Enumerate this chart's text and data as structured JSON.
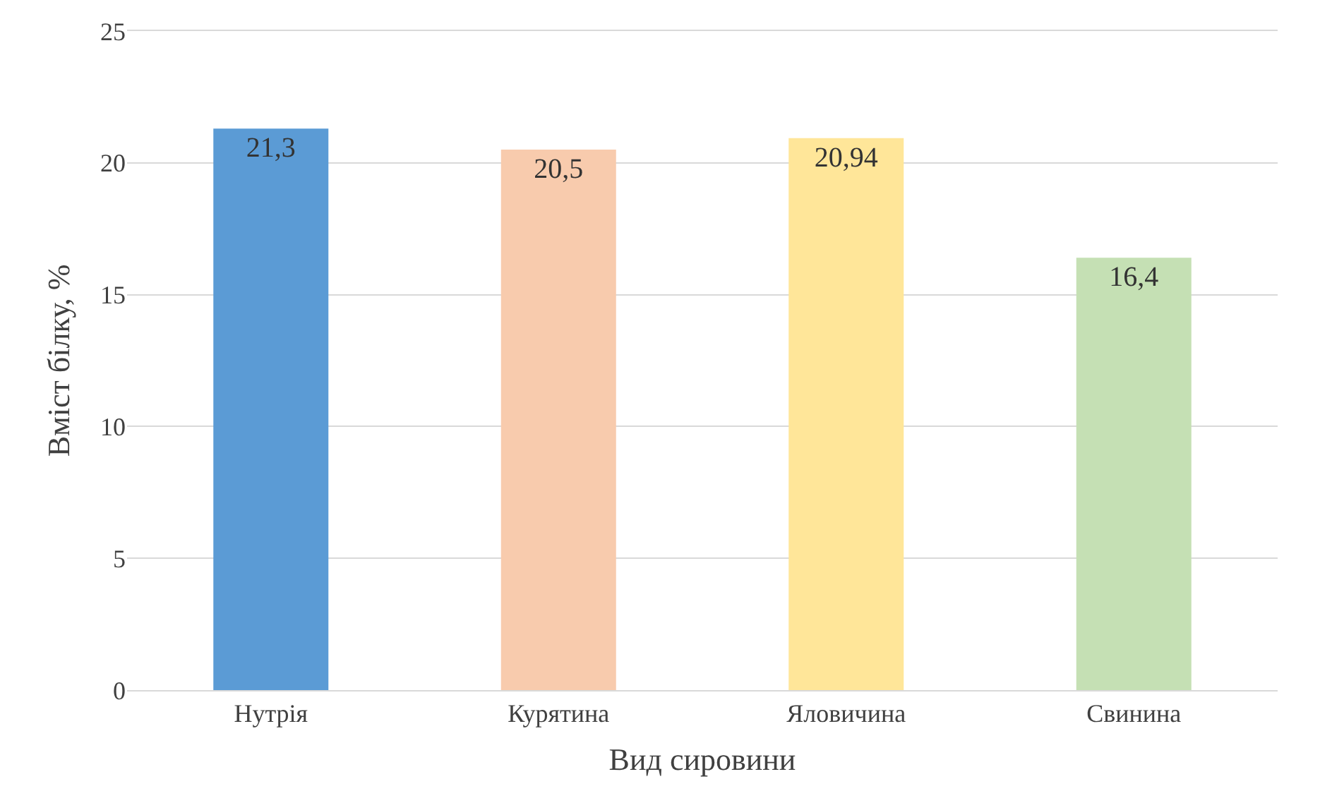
{
  "chart_data": {
    "type": "bar",
    "xlabel": "Вид сировини",
    "ylabel": "Вміст білку, %",
    "categories": [
      "Нутрія",
      "Курятина",
      "Яловичина",
      "Свинина"
    ],
    "values": [
      21.3,
      20.5,
      20.94,
      16.4
    ],
    "value_labels": [
      "21,3",
      "20,5",
      "20,94",
      "16,4"
    ],
    "colors": [
      "#5b9bd5",
      "#f8cbad",
      "#ffe699",
      "#c5e0b4"
    ],
    "ylim": [
      0,
      25
    ],
    "yticks": [
      0,
      5,
      10,
      15,
      20,
      25
    ],
    "grid": "y"
  }
}
